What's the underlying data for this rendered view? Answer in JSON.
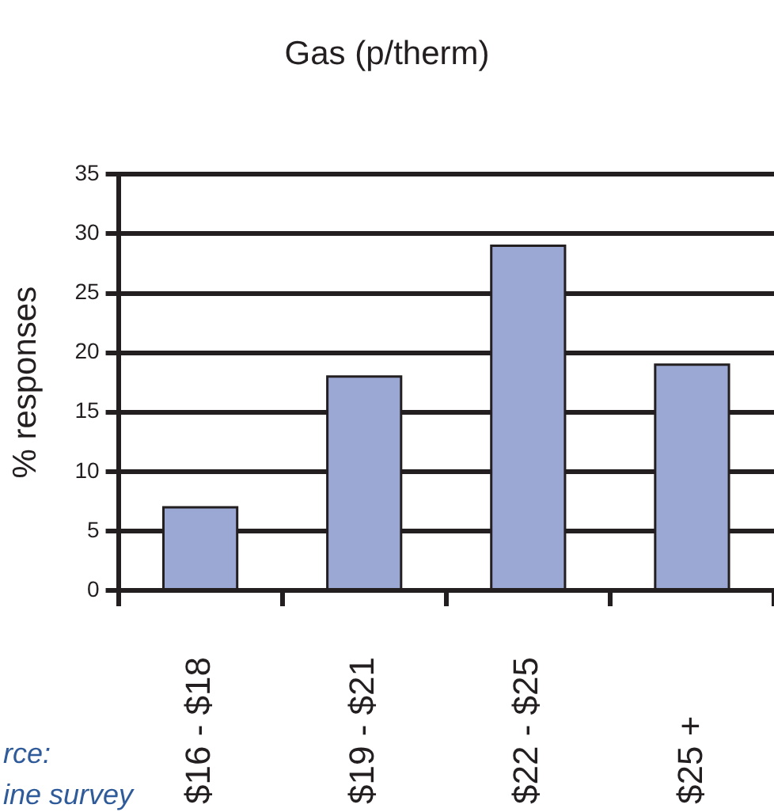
{
  "chart_data": {
    "type": "bar",
    "title": "Gas (p/therm)",
    "ylabel": "% responses",
    "categories": [
      "$16 - $18",
      "$19 - $21",
      "$22 - $25",
      "$25 +"
    ],
    "values": [
      7,
      18,
      29,
      19
    ],
    "color": "#9ba8d3",
    "ylim": [
      0,
      35
    ],
    "yticks": [
      0,
      5,
      10,
      15,
      20,
      25,
      30,
      35
    ],
    "grid": "y",
    "annotations": [
      "rce:",
      "ine survey"
    ]
  }
}
